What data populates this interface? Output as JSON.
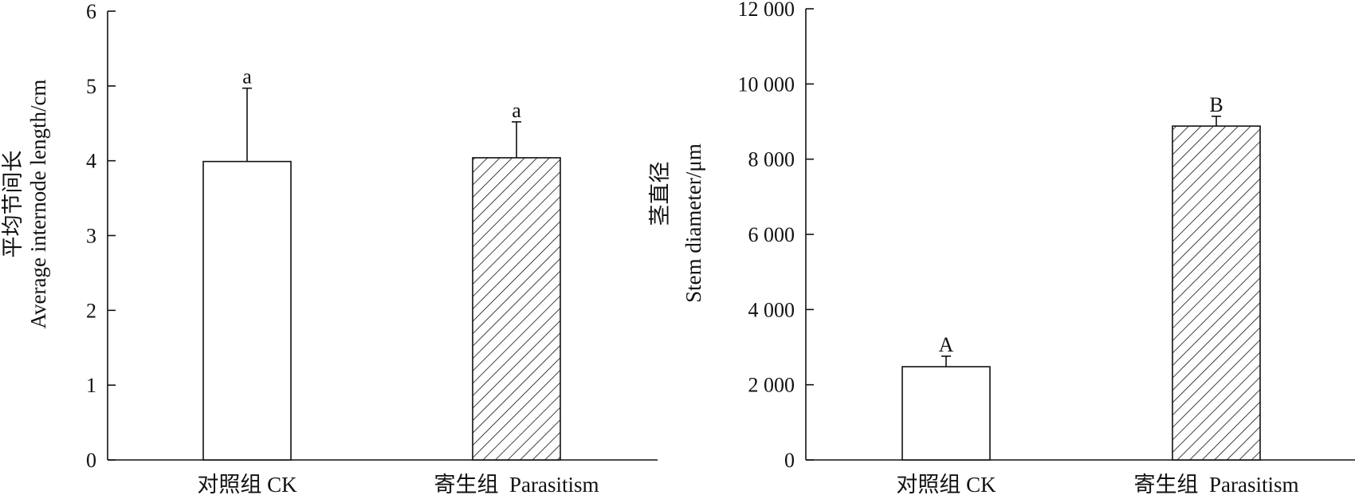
{
  "chart_data": [
    {
      "type": "bar",
      "title": "",
      "categories": [
        "对照组 CK",
        "寄生组  Parasitism"
      ],
      "values": [
        3.99,
        4.04
      ],
      "errors": [
        0.98,
        0.48
      ],
      "significance": [
        "a",
        "a"
      ],
      "fills": [
        "white",
        "hatch"
      ],
      "ylabel_cn": "平均节间长",
      "ylabel_en": "Average internode length/cm",
      "ylim": [
        0,
        6
      ],
      "yticks": [
        0,
        1,
        2,
        3,
        4,
        5,
        6
      ],
      "ytick_labels": [
        "0",
        "1",
        "2",
        "3",
        "4",
        "5",
        "6"
      ],
      "grid": false
    },
    {
      "type": "bar",
      "title": "",
      "categories": [
        "对照组 CK",
        "寄生组  Parasitism"
      ],
      "values": [
        2480,
        8880
      ],
      "errors": [
        280,
        260
      ],
      "significance": [
        "A",
        "B"
      ],
      "fills": [
        "white",
        "hatch"
      ],
      "ylabel_cn": "茎直径",
      "ylabel_en": "Stem diameter/μm",
      "ylim": [
        0,
        12000
      ],
      "yticks": [
        0,
        2000,
        4000,
        6000,
        8000,
        10000,
        12000
      ],
      "ytick_labels": [
        "0",
        "2 000",
        "4 000",
        "6 000",
        "8 000",
        "10 000",
        "12 000"
      ],
      "grid": false
    }
  ]
}
